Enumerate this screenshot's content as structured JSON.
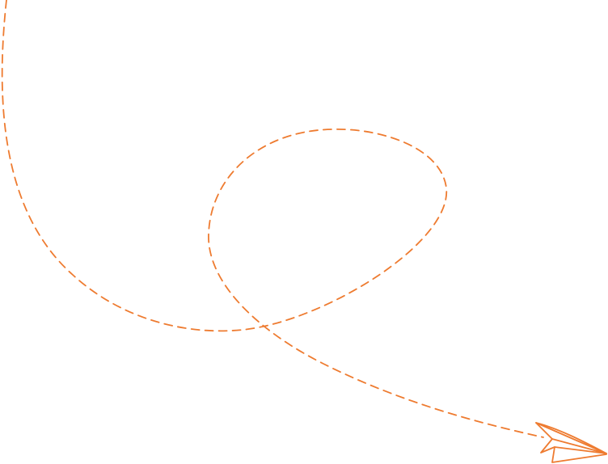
{
  "illustration": {
    "description_type": "dashed-flight-path-with-paper-plane",
    "stroke_color": "#EE7B30",
    "background_color": "#FFFFFF",
    "icon": "paper-plane-icon"
  }
}
